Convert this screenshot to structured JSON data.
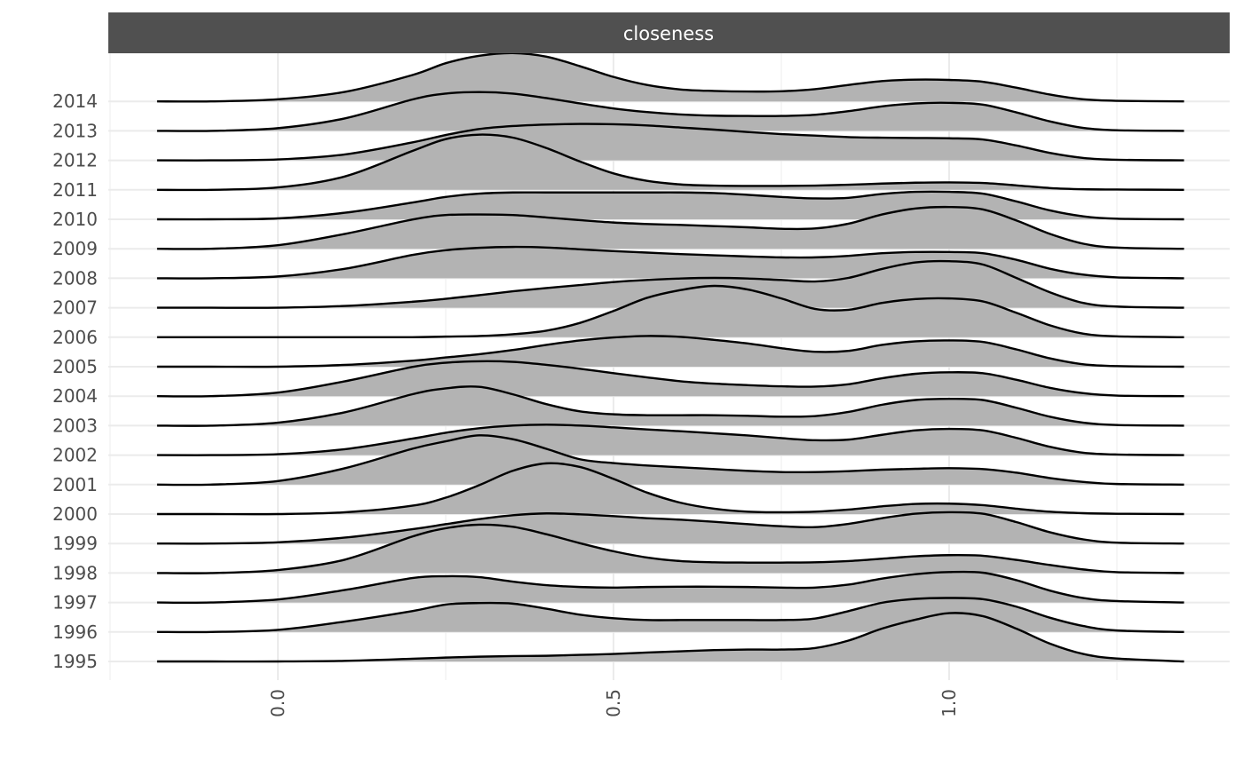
{
  "chart_data": {
    "type": "ridgeline",
    "panel_title": "closeness",
    "xlabel": "",
    "ylabel": "",
    "xlim": [
      -0.25,
      1.4
    ],
    "x_ticks": [
      "0.0",
      "0.5",
      "1.0"
    ],
    "x_tick_values": [
      0.0,
      0.5,
      1.0
    ],
    "x_minor_gridlines": [
      -0.25,
      0.25,
      0.75,
      1.25
    ],
    "grid": true,
    "fill_color": "#b3b3b3",
    "line_color": "#000000",
    "strip_color": "#505050",
    "density_x": [
      -0.18,
      -0.1,
      0.0,
      0.1,
      0.2,
      0.25,
      0.3,
      0.35,
      0.4,
      0.45,
      0.5,
      0.55,
      0.6,
      0.65,
      0.7,
      0.75,
      0.8,
      0.85,
      0.9,
      0.95,
      1.0,
      1.05,
      1.1,
      1.15,
      1.2,
      1.25,
      1.35
    ],
    "series": [
      {
        "name": "1995",
        "density": [
          0,
          0,
          0,
          0.02,
          0.09,
          0.13,
          0.16,
          0.18,
          0.19,
          0.22,
          0.25,
          0.3,
          0.34,
          0.38,
          0.4,
          0.4,
          0.45,
          0.7,
          1.1,
          1.4,
          1.62,
          1.52,
          1.1,
          0.6,
          0.25,
          0.1,
          0
        ]
      },
      {
        "name": "1996",
        "density": [
          0,
          0,
          0.07,
          0.35,
          0.7,
          0.92,
          0.97,
          0.95,
          0.78,
          0.58,
          0.46,
          0.4,
          0.4,
          0.4,
          0.4,
          0.4,
          0.45,
          0.7,
          0.98,
          1.11,
          1.14,
          1.1,
          0.85,
          0.48,
          0.2,
          0.05,
          0
        ]
      },
      {
        "name": "1997",
        "density": [
          0,
          0,
          0.1,
          0.42,
          0.82,
          0.88,
          0.85,
          0.7,
          0.58,
          0.52,
          0.5,
          0.52,
          0.53,
          0.53,
          0.52,
          0.5,
          0.5,
          0.6,
          0.8,
          0.95,
          1.02,
          1.0,
          0.75,
          0.4,
          0.15,
          0.05,
          0
        ]
      },
      {
        "name": "1998",
        "density": [
          0,
          0,
          0.1,
          0.45,
          1.22,
          1.5,
          1.62,
          1.55,
          1.3,
          1.0,
          0.73,
          0.52,
          0.4,
          0.36,
          0.35,
          0.35,
          0.36,
          0.4,
          0.48,
          0.56,
          0.6,
          0.58,
          0.44,
          0.27,
          0.12,
          0.03,
          0
        ]
      },
      {
        "name": "1999",
        "density": [
          0,
          0,
          0.04,
          0.2,
          0.48,
          0.65,
          0.82,
          0.95,
          1.01,
          0.98,
          0.92,
          0.85,
          0.8,
          0.73,
          0.65,
          0.58,
          0.55,
          0.66,
          0.85,
          1.0,
          1.05,
          1.0,
          0.72,
          0.38,
          0.14,
          0.03,
          0
        ]
      },
      {
        "name": "2000",
        "density": [
          0,
          0,
          0,
          0.06,
          0.28,
          0.55,
          0.97,
          1.45,
          1.7,
          1.58,
          1.18,
          0.72,
          0.38,
          0.18,
          0.08,
          0.06,
          0.08,
          0.15,
          0.26,
          0.34,
          0.35,
          0.3,
          0.18,
          0.08,
          0.03,
          0.01,
          0
        ]
      },
      {
        "name": "2001",
        "density": [
          0,
          0,
          0.12,
          0.55,
          1.2,
          1.45,
          1.65,
          1.52,
          1.2,
          0.85,
          0.72,
          0.64,
          0.58,
          0.52,
          0.46,
          0.42,
          0.42,
          0.45,
          0.5,
          0.53,
          0.55,
          0.52,
          0.4,
          0.22,
          0.09,
          0.02,
          0
        ]
      },
      {
        "name": "2002",
        "density": [
          0,
          0,
          0.03,
          0.2,
          0.55,
          0.75,
          0.9,
          0.99,
          1.02,
          0.99,
          0.93,
          0.86,
          0.8,
          0.73,
          0.66,
          0.57,
          0.5,
          0.52,
          0.68,
          0.83,
          0.88,
          0.83,
          0.58,
          0.28,
          0.08,
          0.02,
          0
        ]
      },
      {
        "name": "2003",
        "density": [
          0,
          0,
          0.1,
          0.45,
          1.05,
          1.25,
          1.3,
          1.05,
          0.72,
          0.48,
          0.38,
          0.35,
          0.35,
          0.35,
          0.33,
          0.3,
          0.32,
          0.46,
          0.7,
          0.86,
          0.9,
          0.86,
          0.6,
          0.3,
          0.1,
          0.02,
          0
        ]
      },
      {
        "name": "2004",
        "density": [
          0,
          0,
          0.12,
          0.5,
          0.98,
          1.12,
          1.17,
          1.15,
          1.05,
          0.92,
          0.77,
          0.63,
          0.5,
          0.42,
          0.37,
          0.33,
          0.32,
          0.4,
          0.6,
          0.75,
          0.8,
          0.77,
          0.55,
          0.28,
          0.1,
          0.02,
          0
        ]
      },
      {
        "name": "2005",
        "density": [
          0,
          0,
          0,
          0.06,
          0.2,
          0.31,
          0.42,
          0.56,
          0.73,
          0.88,
          0.98,
          1.03,
          1.0,
          0.9,
          0.78,
          0.62,
          0.5,
          0.53,
          0.73,
          0.85,
          0.88,
          0.83,
          0.58,
          0.28,
          0.08,
          0.02,
          0
        ]
      },
      {
        "name": "2006",
        "density": [
          0,
          0,
          0,
          0,
          0,
          0.02,
          0.04,
          0.1,
          0.22,
          0.48,
          0.88,
          1.32,
          1.58,
          1.72,
          1.6,
          1.3,
          0.95,
          0.92,
          1.15,
          1.28,
          1.3,
          1.2,
          0.82,
          0.4,
          0.12,
          0.03,
          0
        ]
      },
      {
        "name": "2007",
        "density": [
          0,
          0,
          0,
          0.06,
          0.2,
          0.3,
          0.42,
          0.55,
          0.66,
          0.76,
          0.86,
          0.93,
          0.98,
          1.0,
          0.98,
          0.93,
          0.88,
          1.0,
          1.3,
          1.52,
          1.56,
          1.45,
          1.0,
          0.52,
          0.16,
          0.04,
          0
        ]
      },
      {
        "name": "2008",
        "density": [
          0,
          0,
          0.06,
          0.32,
          0.78,
          0.94,
          1.02,
          1.05,
          1.03,
          0.97,
          0.91,
          0.86,
          0.81,
          0.77,
          0.73,
          0.7,
          0.7,
          0.75,
          0.84,
          0.88,
          0.88,
          0.84,
          0.62,
          0.32,
          0.12,
          0.03,
          0
        ]
      },
      {
        "name": "2009",
        "density": [
          0,
          0,
          0.12,
          0.5,
          0.98,
          1.13,
          1.15,
          1.13,
          1.05,
          0.96,
          0.88,
          0.83,
          0.8,
          0.76,
          0.72,
          0.67,
          0.68,
          0.84,
          1.15,
          1.35,
          1.4,
          1.32,
          0.95,
          0.5,
          0.17,
          0.04,
          0
        ]
      },
      {
        "name": "2010",
        "density": [
          0,
          0,
          0.03,
          0.22,
          0.56,
          0.75,
          0.86,
          0.9,
          0.9,
          0.9,
          0.9,
          0.9,
          0.9,
          0.88,
          0.82,
          0.75,
          0.7,
          0.72,
          0.85,
          0.92,
          0.92,
          0.86,
          0.6,
          0.3,
          0.1,
          0.02,
          0
        ]
      },
      {
        "name": "2011",
        "density": [
          0,
          0,
          0.08,
          0.45,
          1.3,
          1.7,
          1.85,
          1.75,
          1.4,
          0.95,
          0.55,
          0.3,
          0.18,
          0.14,
          0.13,
          0.13,
          0.14,
          0.17,
          0.21,
          0.24,
          0.25,
          0.23,
          0.15,
          0.06,
          0.02,
          0.01,
          0
        ]
      },
      {
        "name": "2012",
        "density": [
          0,
          0,
          0.03,
          0.2,
          0.6,
          0.85,
          1.05,
          1.15,
          1.2,
          1.22,
          1.21,
          1.17,
          1.1,
          1.03,
          0.95,
          0.88,
          0.83,
          0.78,
          0.76,
          0.75,
          0.74,
          0.7,
          0.5,
          0.25,
          0.08,
          0.02,
          0
        ]
      },
      {
        "name": "2013",
        "density": [
          0,
          0,
          0.09,
          0.42,
          1.05,
          1.25,
          1.3,
          1.25,
          1.1,
          0.92,
          0.75,
          0.63,
          0.55,
          0.51,
          0.5,
          0.5,
          0.54,
          0.66,
          0.82,
          0.92,
          0.94,
          0.88,
          0.62,
          0.32,
          0.1,
          0.02,
          0
        ]
      },
      {
        "name": "2014",
        "density": [
          0,
          0,
          0.07,
          0.32,
          0.88,
          1.28,
          1.53,
          1.62,
          1.5,
          1.18,
          0.82,
          0.55,
          0.4,
          0.35,
          0.33,
          0.34,
          0.41,
          0.55,
          0.68,
          0.73,
          0.72,
          0.66,
          0.46,
          0.23,
          0.07,
          0.02,
          0
        ]
      }
    ]
  }
}
